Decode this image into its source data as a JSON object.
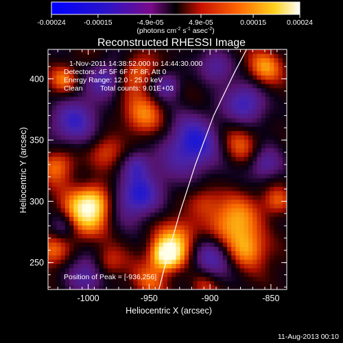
{
  "colorbar": {
    "ticks": [
      "-0.00024",
      "-0.00015",
      "-4.9e-05",
      "4.9e-05",
      "0.00015",
      "0.00024"
    ],
    "tick_values": [
      -0.00024,
      -0.00015,
      -4.9e-05,
      4.9e-05,
      0.00015,
      0.00024
    ],
    "units_main": "(photons cm",
    "units_sup1": "-2",
    "units_mid": " s",
    "units_sup2": "-1",
    "units_mid2": " asec",
    "units_sup3": "-2",
    "units_end": ")"
  },
  "chart_data": {
    "type": "heatmap",
    "title": "Reconstructed RHESSI Image",
    "xlabel": "Heliocentric X (arcsec)",
    "ylabel": "Heliocentric Y (arcsec)",
    "xlim": [
      -1033,
      -837
    ],
    "ylim": [
      228,
      424
    ],
    "x_ticks": [
      -1000,
      -950,
      -900,
      -850
    ],
    "x_tick_labels": [
      "-1000",
      "-950",
      "-900",
      "-850"
    ],
    "y_ticks": [
      250,
      300,
      350,
      400
    ],
    "y_tick_labels": [
      "250",
      "300",
      "350",
      "400"
    ],
    "colorscale": "red-temperature",
    "value_range": [
      -0.00024,
      0.00024
    ],
    "peak": {
      "x": -936,
      "y": 256
    },
    "annotations": {
      "time_range": "1-Nov-2011 14:38:52.000 to 14:44:30.000",
      "detectors": "Detectors: 4F 5F 6F 7F 8F, Att 0",
      "energy": "Energy Range: 12.0 - 25.0 keV",
      "method": "Clean",
      "counts": "Total counts: 9.01E+03",
      "peak_position": "Position of Peak = [-936,256]"
    },
    "limb_curve": {
      "description": "solar limb",
      "points": [
        [
          -942,
          228
        ],
        [
          -935,
          255
        ],
        [
          -925,
          290
        ],
        [
          -912,
          330
        ],
        [
          -897,
          370
        ],
        [
          -880,
          405
        ],
        [
          -870,
          424
        ]
      ]
    }
  },
  "footer": {
    "date": "11-Aug-2013 00:10"
  },
  "colors": {
    "background": "#000000",
    "text": "#ffffff",
    "limb": "#ffffff"
  }
}
